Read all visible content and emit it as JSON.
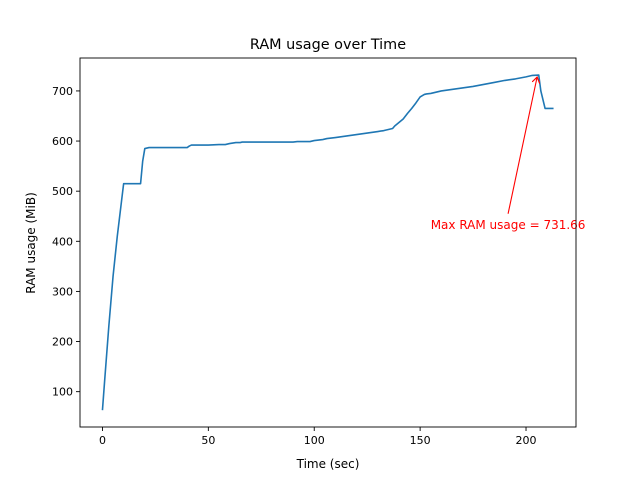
{
  "chart_data": {
    "type": "line",
    "title": "RAM usage over Time",
    "xlabel": "Time (sec)",
    "ylabel": "RAM usage (MiB)",
    "xlim": [
      -10.6,
      223.6
    ],
    "ylim": [
      29.5,
      765.7
    ],
    "xticks": [
      0,
      50,
      100,
      150,
      200
    ],
    "yticks": [
      100,
      200,
      300,
      400,
      500,
      600,
      700
    ],
    "grid": false,
    "series": [
      {
        "color": "#1f77b4",
        "x": [
          0,
          1,
          3,
          5,
          7,
          9,
          10,
          11,
          12,
          14,
          16,
          18,
          19,
          20,
          22,
          25,
          30,
          35,
          40,
          41,
          42,
          45,
          50,
          55,
          58,
          60,
          63,
          65,
          66,
          70,
          75,
          80,
          85,
          90,
          92,
          95,
          98,
          100,
          102,
          104,
          106,
          110,
          115,
          120,
          125,
          130,
          133,
          135,
          137,
          138,
          140,
          142,
          144,
          146,
          148,
          150,
          152,
          153,
          155,
          158,
          160,
          165,
          170,
          175,
          180,
          185,
          190,
          195,
          200,
          203,
          206,
          207,
          209,
          211,
          213
        ],
        "y": [
          63,
          120,
          230,
          330,
          410,
          480,
          515,
          515,
          515,
          515,
          515,
          515,
          560,
          585,
          587,
          587,
          587,
          587,
          587,
          590,
          592,
          592,
          592,
          593,
          593,
          595,
          597,
          597,
          598,
          598,
          598,
          598,
          598,
          598,
          599,
          599,
          599,
          601,
          602,
          603,
          605,
          607,
          610,
          613,
          616,
          619,
          621,
          623,
          625,
          630,
          637,
          644,
          655,
          665,
          676,
          688,
          693,
          694,
          695,
          698,
          700,
          703,
          706,
          709,
          713,
          717,
          721,
          724,
          728,
          731,
          731.66,
          700,
          665,
          665,
          665
        ]
      }
    ],
    "annotations": [
      {
        "text": "Max RAM usage = 731.66",
        "color": "#ff0000",
        "xy": [
          205,
          731.66
        ],
        "xytext": [
          155,
          433
        ]
      }
    ]
  }
}
